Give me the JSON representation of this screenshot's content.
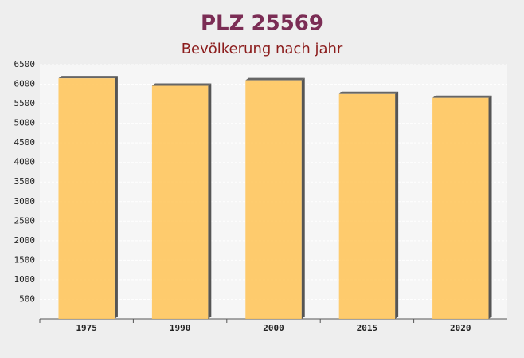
{
  "chart_data": {
    "type": "bar",
    "title": "PLZ 25569",
    "subtitle": "Bevölkerung nach jahr",
    "categories": [
      "1975",
      "1990",
      "2000",
      "2015",
      "2020"
    ],
    "values": [
      6150,
      5960,
      6100,
      5750,
      5650
    ],
    "color": "#ffc65e",
    "ylim": [
      0,
      6500
    ],
    "yticks": [
      500,
      1000,
      1500,
      2000,
      2500,
      3000,
      3500,
      4000,
      4500,
      5000,
      5500,
      6000,
      6500
    ],
    "grid": true
  }
}
